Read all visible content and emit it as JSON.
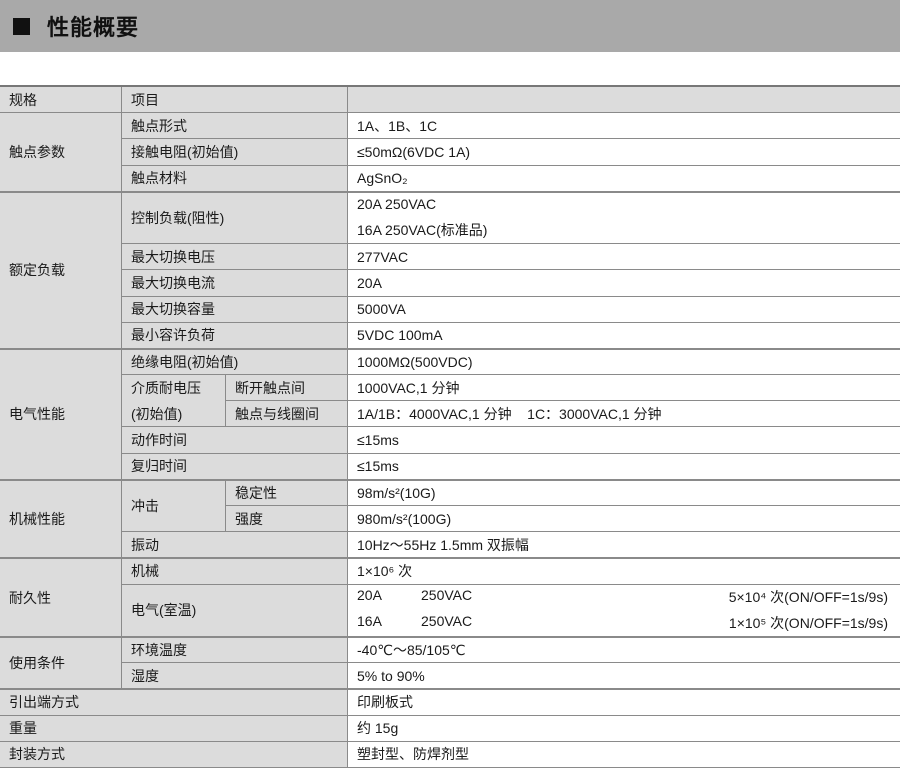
{
  "title": "性能概要",
  "table": {
    "header": {
      "spec": "规格",
      "item": "项目",
      "value": ""
    },
    "contact": {
      "group": "触点参数",
      "rows": [
        {
          "item": "触点形式",
          "value": "1A、1B、1C"
        },
        {
          "item": "接触电阻(初始值)",
          "value": "≤50mΩ(6VDC 1A)"
        },
        {
          "item": "触点材料",
          "value": "AgSnO₂"
        }
      ]
    },
    "load": {
      "group": "额定负载",
      "control_item": "控制负载(阻性)",
      "control_values": [
        "20A 250VAC",
        "16A 250VAC(标准品)"
      ],
      "rows": [
        {
          "item": "最大切换电压",
          "value": "277VAC"
        },
        {
          "item": "最大切换电流",
          "value": "20A"
        },
        {
          "item": "最大切换容量",
          "value": "5000VA"
        },
        {
          "item": "最小容许负荷",
          "value": "5VDC 100mA"
        }
      ]
    },
    "electrical": {
      "group": "电气性能",
      "insulation": {
        "item": "绝缘电阻(初始值)",
        "value": "1000MΩ(500VDC)"
      },
      "dielectric": {
        "item_line1": "介质耐电压",
        "item_line2": "(初始值)",
        "open_contacts": {
          "item": "断开触点间",
          "value": "1000VAC,1 分钟"
        },
        "contact_coil": {
          "item": "触点与线圈间",
          "value": "1A/1B：4000VAC,1 分钟    1C：3000VAC,1 分钟"
        }
      },
      "operate": {
        "item": "动作时间",
        "value": "≤15ms"
      },
      "release": {
        "item": "复归时间",
        "value": "≤15ms"
      }
    },
    "mechanical": {
      "group": "机械性能",
      "shock": "冲击",
      "stability": {
        "item": "稳定性",
        "value": "98m/s²(10G)"
      },
      "strength": {
        "item": "强度",
        "value": "980m/s²(100G)"
      },
      "vibration": {
        "item": "振动",
        "value": "10Hz～55Hz 1.5mm 双振幅"
      }
    },
    "durability": {
      "group": "耐久性",
      "mechanical": {
        "item": "机械",
        "value": "1×10⁶ 次"
      },
      "electrical": {
        "item": "电气(室温)",
        "lines": [
          {
            "current": "20A",
            "voltage": "250VAC",
            "cycles": "5×10⁴ 次(ON/OFF=1s/9s)"
          },
          {
            "current": "16A",
            "voltage": "250VAC",
            "cycles": "1×10⁵ 次(ON/OFF=1s/9s)"
          }
        ]
      }
    },
    "conditions": {
      "group": "使用条件",
      "temperature": {
        "item": "环境温度",
        "value": "-40℃～85/105℃"
      },
      "humidity": {
        "item": "湿度",
        "value": "5% to 90%"
      }
    },
    "terminal": {
      "item": "引出端方式",
      "value": "印刷板式"
    },
    "weight": {
      "item": "重量",
      "value": "约 15g"
    },
    "package": {
      "item": "封装方式",
      "value": "塑封型、防焊剂型"
    }
  }
}
